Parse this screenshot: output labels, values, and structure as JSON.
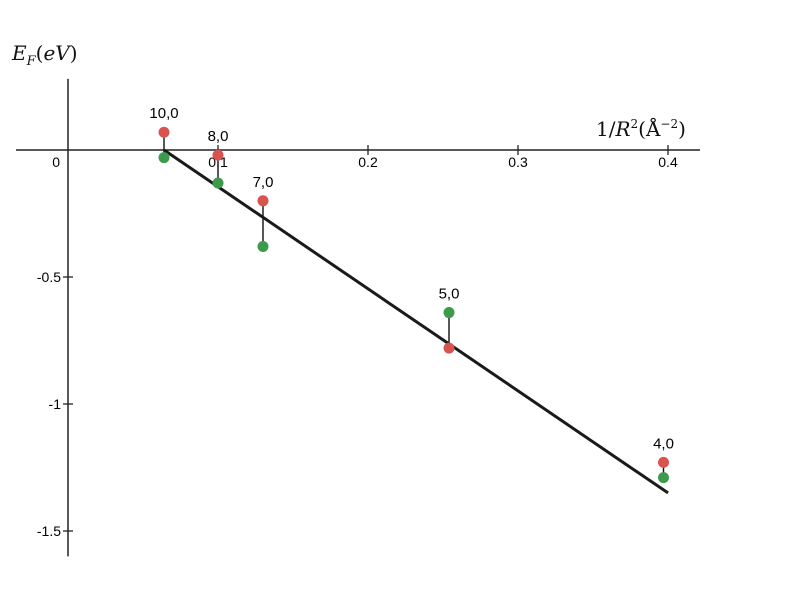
{
  "chart_data": {
    "type": "scatter",
    "xlabel": "1/R²(Å⁻²)",
    "ylabel": "E_F(eV)",
    "xlim": [
      -0.035,
      0.42
    ],
    "ylim": [
      -1.6,
      0.28
    ],
    "grid": false,
    "x_ticks": [
      {
        "value": 0,
        "label": "0"
      },
      {
        "value": 0.1,
        "label": "0.1"
      },
      {
        "value": 0.2,
        "label": "0.2"
      },
      {
        "value": 0.3,
        "label": "0.3"
      },
      {
        "value": 0.4,
        "label": "0.4"
      }
    ],
    "y_ticks": [
      {
        "value": -0.5,
        "label": "-0.5"
      },
      {
        "value": -1,
        "label": "-1"
      },
      {
        "value": -1.5,
        "label": "-1.5"
      }
    ],
    "series": [
      {
        "color": "#d9534f",
        "points": [
          {
            "x": 0.064,
            "y": 0.07
          },
          {
            "x": 0.1,
            "y": -0.02
          },
          {
            "x": 0.13,
            "y": -0.2
          },
          {
            "x": 0.254,
            "y": -0.78
          },
          {
            "x": 0.397,
            "y": -1.23
          }
        ]
      },
      {
        "color": "#3d9a4a",
        "points": [
          {
            "x": 0.064,
            "y": -0.03
          },
          {
            "x": 0.1,
            "y": -0.13
          },
          {
            "x": 0.13,
            "y": -0.38
          },
          {
            "x": 0.254,
            "y": -0.64
          },
          {
            "x": 0.397,
            "y": -1.29
          }
        ]
      }
    ],
    "point_labels": [
      {
        "text": "10,0",
        "x": 0.064
      },
      {
        "text": "8,0",
        "x": 0.1
      },
      {
        "text": "7,0",
        "x": 0.13
      },
      {
        "text": "5,0",
        "x": 0.254
      },
      {
        "text": "4,0",
        "x": 0.397
      }
    ],
    "fit_line": {
      "color": "#1a1a1a",
      "from": {
        "x": 0.064,
        "y": 0.0
      },
      "to": {
        "x": 0.4,
        "y": -1.35
      }
    }
  }
}
